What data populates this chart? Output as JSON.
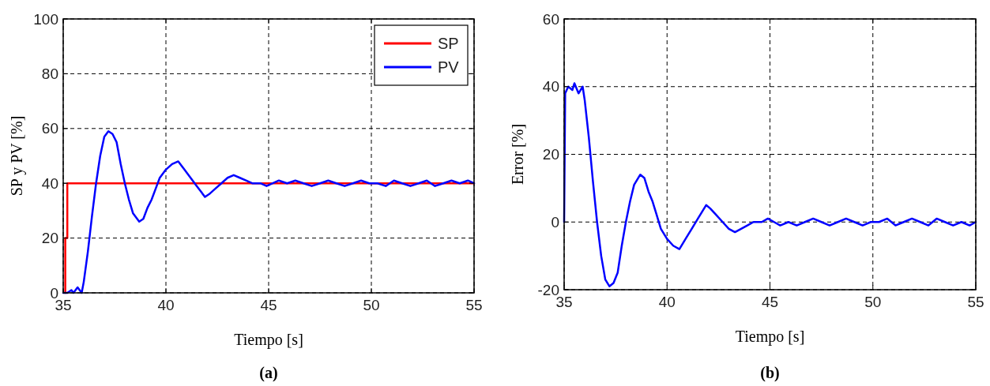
{
  "chart_data": [
    {
      "type": "line",
      "title": "(a)",
      "xlabel": "Tiempo [s]",
      "ylabel": "SP y PV [%]",
      "xlim": [
        35,
        55
      ],
      "xticks": [
        35,
        40,
        45,
        50,
        55
      ],
      "ylim": [
        0,
        100
      ],
      "yticks": [
        0,
        20,
        40,
        60,
        80,
        100
      ],
      "grid": true,
      "legend": "top right",
      "line_style": "solid",
      "series": [
        {
          "name": "SP",
          "color": "#ff0000",
          "x": [
            35.1,
            35.1,
            35.2,
            35.2,
            55
          ],
          "values": [
            0,
            20,
            20,
            40,
            40
          ]
        },
        {
          "name": "PV",
          "color": "#0000ff",
          "x": [
            35.0,
            35.2,
            35.4,
            35.5,
            35.7,
            35.9,
            36.0,
            36.2,
            36.4,
            36.6,
            36.8,
            37.0,
            37.2,
            37.4,
            37.6,
            37.8,
            38.0,
            38.2,
            38.4,
            38.7,
            38.9,
            39.1,
            39.3,
            39.5,
            39.7,
            40.0,
            40.3,
            40.6,
            40.9,
            41.2,
            41.5,
            41.7,
            41.9,
            42.1,
            42.4,
            42.7,
            43.0,
            43.3,
            43.6,
            43.9,
            44.2,
            44.6,
            44.9,
            45.2,
            45.5,
            45.9,
            46.3,
            46.7,
            47.1,
            47.5,
            47.9,
            48.3,
            48.7,
            49.1,
            49.5,
            49.9,
            50.3,
            50.7,
            51.1,
            51.5,
            51.9,
            52.3,
            52.7,
            53.1,
            53.5,
            53.9,
            54.3,
            54.7,
            55.0
          ],
          "values": [
            0,
            0,
            1,
            0,
            2,
            0,
            4,
            15,
            28,
            40,
            50,
            57,
            59,
            58,
            55,
            47,
            40,
            34,
            29,
            26,
            27,
            31,
            34,
            38,
            42,
            45,
            47,
            48,
            45,
            42,
            39,
            37,
            35,
            36,
            38,
            40,
            42,
            43,
            42,
            41,
            40,
            40,
            39,
            40,
            41,
            40,
            41,
            40,
            39,
            40,
            41,
            40,
            39,
            40,
            41,
            40,
            40,
            39,
            41,
            40,
            39,
            40,
            41,
            39,
            40,
            41,
            40,
            41,
            40
          ]
        }
      ]
    },
    {
      "type": "line",
      "title": "(b)",
      "xlabel": "Tiempo [s]",
      "ylabel": "Error [%]",
      "xlim": [
        35,
        55
      ],
      "xticks": [
        35,
        40,
        45,
        50,
        55
      ],
      "ylim": [
        -20,
        60
      ],
      "yticks": [
        -20,
        0,
        20,
        40,
        60
      ],
      "grid": true,
      "line_style": "solid",
      "series": [
        {
          "color": "#0000ff",
          "x": [
            35.0,
            35.05,
            35.2,
            35.4,
            35.5,
            35.7,
            35.9,
            36.0,
            36.2,
            36.4,
            36.6,
            36.8,
            37.0,
            37.2,
            37.4,
            37.6,
            37.8,
            38.0,
            38.2,
            38.4,
            38.7,
            38.9,
            39.1,
            39.3,
            39.5,
            39.7,
            40.0,
            40.3,
            40.6,
            40.9,
            41.2,
            41.5,
            41.7,
            41.9,
            42.1,
            42.4,
            42.7,
            43.0,
            43.3,
            43.6,
            43.9,
            44.2,
            44.6,
            44.9,
            45.2,
            45.5,
            45.9,
            46.3,
            46.7,
            47.1,
            47.5,
            47.9,
            48.3,
            48.7,
            49.1,
            49.5,
            49.9,
            50.3,
            50.7,
            51.1,
            51.5,
            51.9,
            52.3,
            52.7,
            53.1,
            53.5,
            53.9,
            54.3,
            54.7,
            55.0
          ],
          "values": [
            0,
            38,
            40,
            39,
            41,
            38,
            40,
            36,
            25,
            12,
            0,
            -10,
            -17,
            -19,
            -18,
            -15,
            -7,
            0,
            6,
            11,
            14,
            13,
            9,
            6,
            2,
            -2,
            -5,
            -7,
            -8,
            -5,
            -2,
            1,
            3,
            5,
            4,
            2,
            0,
            -2,
            -3,
            -2,
            -1,
            0,
            0,
            1,
            0,
            -1,
            0,
            -1,
            0,
            1,
            0,
            -1,
            0,
            1,
            0,
            -1,
            0,
            0,
            1,
            -1,
            0,
            1,
            0,
            -1,
            1,
            0,
            -1,
            0,
            -1,
            0
          ]
        }
      ]
    }
  ]
}
